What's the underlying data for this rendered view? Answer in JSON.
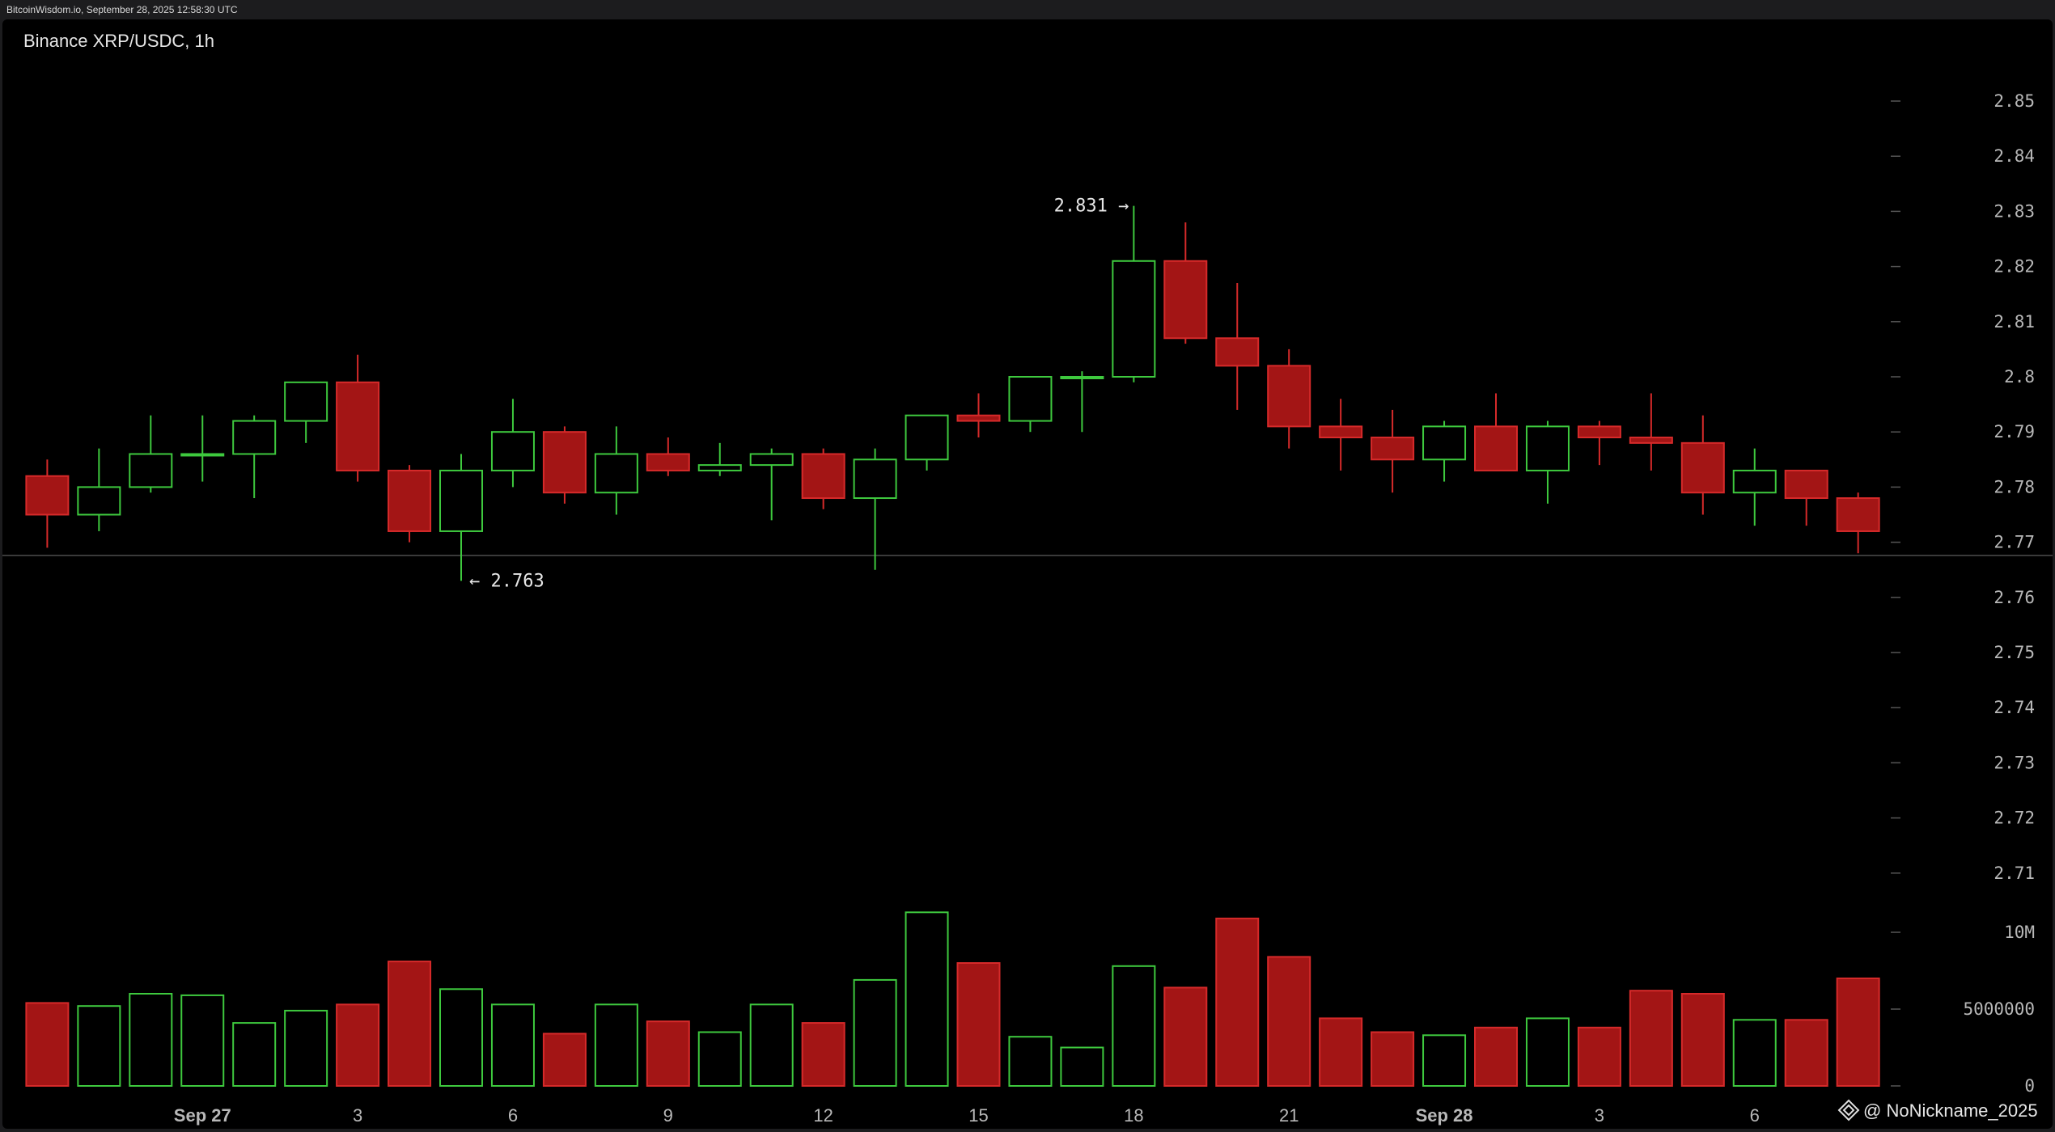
{
  "header": {
    "source_line": "BitcoinWisdom.io, September 28, 2025 12:58:30 UTC"
  },
  "watermark": {
    "text": "@ NoNickname_2025"
  },
  "colors": {
    "up": "#3ec93e",
    "down": "#a31515",
    "down_stroke": "#d62a2a",
    "axis_text": "#b8b8b8",
    "tick": "#555555",
    "separator": "#3a3a3a",
    "background": "#000000"
  },
  "chart_data": {
    "type": "candlestick",
    "title": "Binance XRP/USDC, 1h",
    "price_axis": {
      "ylim": [
        2.7,
        2.86
      ],
      "ticks": [
        "2.71",
        "2.72",
        "2.73",
        "2.74",
        "2.75",
        "2.76",
        "2.77",
        "2.78",
        "2.79",
        "2.8",
        "2.81",
        "2.82",
        "2.83",
        "2.84",
        "2.85"
      ],
      "tick_values": [
        2.71,
        2.72,
        2.73,
        2.74,
        2.75,
        2.76,
        2.77,
        2.78,
        2.79,
        2.8,
        2.81,
        2.82,
        2.83,
        2.84,
        2.85
      ]
    },
    "volume_axis": {
      "ylim": [
        0,
        12000000
      ],
      "ticks": [
        "0",
        "5000000",
        "10M"
      ],
      "tick_values": [
        0,
        5000000,
        10000000
      ]
    },
    "x_axis": {
      "labels": [
        "Sep 27",
        "3",
        "6",
        "9",
        "12",
        "15",
        "18",
        "21",
        "Sep 28",
        "3",
        "6"
      ],
      "label_candle_index": [
        3,
        6,
        9,
        12,
        15,
        18,
        21,
        24,
        27,
        30,
        33
      ],
      "bold": [
        true,
        false,
        false,
        false,
        false,
        false,
        false,
        false,
        true,
        false,
        false
      ]
    },
    "annotations": [
      {
        "text": "2.831 →",
        "candle_index": 21,
        "value": 2.831,
        "side": "left"
      },
      {
        "text": "← 2.763",
        "candle_index": 8,
        "value": 2.763,
        "side": "right"
      }
    ],
    "candles": [
      {
        "o": 2.782,
        "h": 2.785,
        "l": 2.769,
        "c": 2.775,
        "v": 5400000
      },
      {
        "o": 2.775,
        "h": 2.787,
        "l": 2.772,
        "c": 2.78,
        "v": 5200000
      },
      {
        "o": 2.78,
        "h": 2.793,
        "l": 2.779,
        "c": 2.786,
        "v": 6000000
      },
      {
        "o": 2.786,
        "h": 2.793,
        "l": 2.781,
        "c": 2.786,
        "v": 5900000
      },
      {
        "o": 2.786,
        "h": 2.793,
        "l": 2.778,
        "c": 2.792,
        "v": 4100000
      },
      {
        "o": 2.792,
        "h": 2.799,
        "l": 2.788,
        "c": 2.799,
        "v": 4900000
      },
      {
        "o": 2.799,
        "h": 2.804,
        "l": 2.781,
        "c": 2.783,
        "v": 5300000
      },
      {
        "o": 2.783,
        "h": 2.784,
        "l": 2.77,
        "c": 2.772,
        "v": 8100000
      },
      {
        "o": 2.772,
        "h": 2.786,
        "l": 2.763,
        "c": 2.783,
        "v": 6300000
      },
      {
        "o": 2.783,
        "h": 2.796,
        "l": 2.78,
        "c": 2.79,
        "v": 5300000
      },
      {
        "o": 2.79,
        "h": 2.791,
        "l": 2.777,
        "c": 2.779,
        "v": 3400000
      },
      {
        "o": 2.779,
        "h": 2.791,
        "l": 2.775,
        "c": 2.786,
        "v": 5300000
      },
      {
        "o": 2.786,
        "h": 2.789,
        "l": 2.782,
        "c": 2.783,
        "v": 4200000
      },
      {
        "o": 2.783,
        "h": 2.788,
        "l": 2.782,
        "c": 2.784,
        "v": 3500000
      },
      {
        "o": 2.784,
        "h": 2.787,
        "l": 2.774,
        "c": 2.786,
        "v": 5300000
      },
      {
        "o": 2.786,
        "h": 2.787,
        "l": 2.776,
        "c": 2.778,
        "v": 4100000
      },
      {
        "o": 2.778,
        "h": 2.787,
        "l": 2.765,
        "c": 2.785,
        "v": 6900000
      },
      {
        "o": 2.785,
        "h": 2.793,
        "l": 2.783,
        "c": 2.793,
        "v": 11300000
      },
      {
        "o": 2.793,
        "h": 2.797,
        "l": 2.789,
        "c": 2.792,
        "v": 8000000
      },
      {
        "o": 2.792,
        "h": 2.8,
        "l": 2.79,
        "c": 2.8,
        "v": 3200000
      },
      {
        "o": 2.8,
        "h": 2.801,
        "l": 2.79,
        "c": 2.8,
        "v": 2500000
      },
      {
        "o": 2.8,
        "h": 2.831,
        "l": 2.799,
        "c": 2.821,
        "v": 7800000
      },
      {
        "o": 2.821,
        "h": 2.828,
        "l": 2.806,
        "c": 2.807,
        "v": 6400000
      },
      {
        "o": 2.807,
        "h": 2.817,
        "l": 2.794,
        "c": 2.802,
        "v": 10900000
      },
      {
        "o": 2.802,
        "h": 2.805,
        "l": 2.787,
        "c": 2.791,
        "v": 8400000
      },
      {
        "o": 2.791,
        "h": 2.796,
        "l": 2.783,
        "c": 2.789,
        "v": 4400000
      },
      {
        "o": 2.789,
        "h": 2.794,
        "l": 2.779,
        "c": 2.785,
        "v": 3500000
      },
      {
        "o": 2.785,
        "h": 2.792,
        "l": 2.781,
        "c": 2.791,
        "v": 3300000
      },
      {
        "o": 2.791,
        "h": 2.797,
        "l": 2.783,
        "c": 2.783,
        "v": 3800000
      },
      {
        "o": 2.783,
        "h": 2.792,
        "l": 2.777,
        "c": 2.791,
        "v": 4400000
      },
      {
        "o": 2.791,
        "h": 2.792,
        "l": 2.784,
        "c": 2.789,
        "v": 3800000
      },
      {
        "o": 2.789,
        "h": 2.797,
        "l": 2.783,
        "c": 2.788,
        "v": 6200000
      },
      {
        "o": 2.788,
        "h": 2.793,
        "l": 2.775,
        "c": 2.779,
        "v": 6000000
      },
      {
        "o": 2.779,
        "h": 2.787,
        "l": 2.773,
        "c": 2.783,
        "v": 4300000
      },
      {
        "o": 2.783,
        "h": 2.783,
        "l": 2.773,
        "c": 2.778,
        "v": 4300000
      },
      {
        "o": 2.778,
        "h": 2.779,
        "l": 2.768,
        "c": 2.772,
        "v": 7000000
      }
    ]
  }
}
